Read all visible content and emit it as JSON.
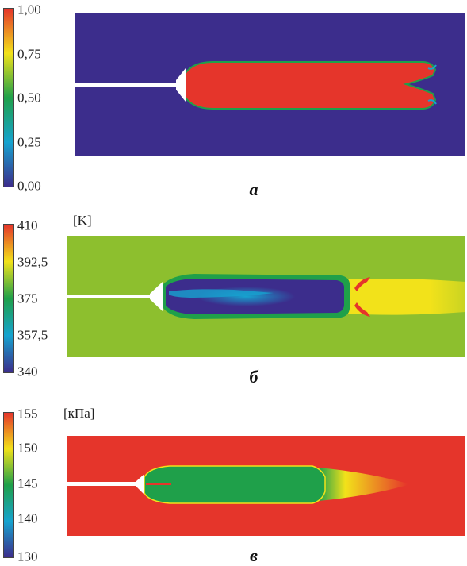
{
  "panels": [
    {
      "id": "a",
      "caption": "а",
      "unit": "",
      "ticks": [
        "1,00",
        "0,75",
        "0,50",
        "0,25",
        "0,00"
      ],
      "scale": "red-yellow-green-cyan-blue"
    },
    {
      "id": "b",
      "caption": "б",
      "unit": "[K]",
      "ticks": [
        "410",
        "392,5",
        "375",
        "357,5",
        "340"
      ],
      "scale": "red-yellow-green-cyan-blue"
    },
    {
      "id": "c",
      "caption": "в",
      "unit": "[кПа]",
      "ticks": [
        "155",
        "150",
        "145",
        "140",
        "130"
      ],
      "scale": "red-yellow-green-cyan-blue"
    }
  ],
  "colors": {
    "high": "#e5352b",
    "upper": "#f2e21a",
    "mid": "#1fa04a",
    "lower": "#16a3cf",
    "low": "#3c2d8c",
    "background_b": "#8dbf2e"
  }
}
